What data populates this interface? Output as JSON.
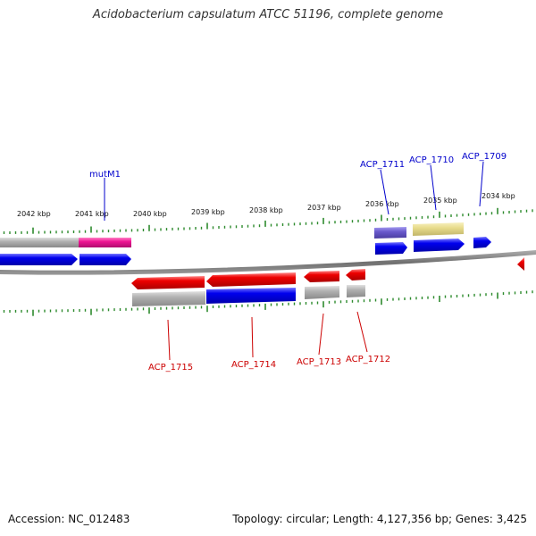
{
  "title": "Acidobacterium capsulatum ATCC 51196, complete genome",
  "footer": {
    "accession": "Accession: NC_012483",
    "summary": "Topology: circular; Length: 4,127,356 bp; Genes: 3,425"
  },
  "colors": {
    "forward_label": "#0000cc",
    "reverse_label": "#cc0000",
    "tick": "#2e8b2e",
    "backbone": "#808080",
    "cds_blue": "#0000ee",
    "cds_red": "#ee0000",
    "gene_gray": "#a8a8a8",
    "pink": "#ee1493",
    "purple": "#6a5acd",
    "khaki": "#e8dc8c"
  },
  "scale": {
    "labels": [
      "2042 kbp",
      "2041 kbp",
      "2040 kbp",
      "2039 kbp",
      "2038 kbp",
      "2037 kbp",
      "2036 kbp",
      "2035 kbp",
      "2034 kbp"
    ]
  },
  "genes": {
    "forward_labels": [
      "mutM1",
      "ACP_1711",
      "ACP_1710",
      "ACP_1709"
    ],
    "reverse_labels": [
      "ACP_1715",
      "ACP_1714",
      "ACP_1713",
      "ACP_1712"
    ]
  }
}
